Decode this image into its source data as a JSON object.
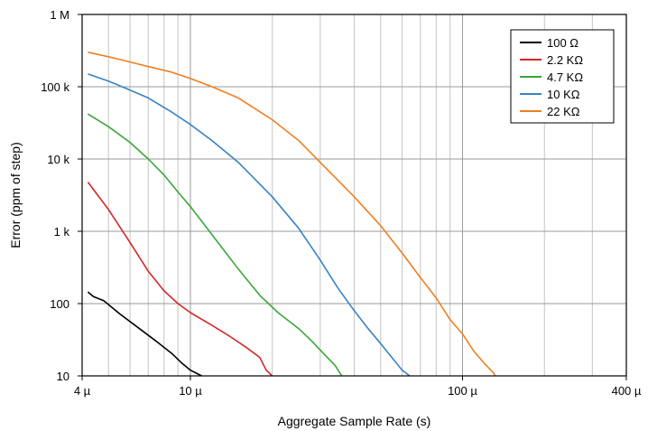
{
  "chart_data": {
    "type": "line",
    "title": "",
    "xlabel": "Aggregate Sample Rate (s)",
    "ylabel": "Error (ppm of step)",
    "xscale": "log",
    "yscale": "log",
    "xlim": [
      4e-06,
      0.0004
    ],
    "ylim": [
      10,
      1000000
    ],
    "grid": true,
    "legend_position": "top-right",
    "x_ticks": [
      {
        "value": 4e-06,
        "label": "4 µ"
      },
      {
        "value": 1e-05,
        "label": "10 µ"
      },
      {
        "value": 0.0001,
        "label": "100 µ"
      },
      {
        "value": 0.0004,
        "label": "400 µ"
      }
    ],
    "y_ticks": [
      {
        "value": 10,
        "label": "10"
      },
      {
        "value": 100,
        "label": "100"
      },
      {
        "value": 1000,
        "label": "1 k"
      },
      {
        "value": 10000,
        "label": "10 k"
      },
      {
        "value": 100000,
        "label": "100 k"
      },
      {
        "value": 1000000,
        "label": "1 M"
      }
    ],
    "series": [
      {
        "name": "100 Ω",
        "color": "#000000",
        "points": [
          [
            4.2e-06,
            145
          ],
          [
            4.4e-06,
            125
          ],
          [
            4.8e-06,
            110
          ],
          [
            5.5e-06,
            72
          ],
          [
            6.4e-06,
            47
          ],
          [
            7.5e-06,
            30
          ],
          [
            8.6e-06,
            20
          ],
          [
            9.3e-06,
            15
          ],
          [
            1e-05,
            12
          ],
          [
            1.1e-05,
            10
          ]
        ]
      },
      {
        "name": "2.2 KΩ",
        "color": "#d62728",
        "points": [
          [
            4.2e-06,
            4800
          ],
          [
            5e-06,
            2000
          ],
          [
            6e-06,
            700
          ],
          [
            7e-06,
            280
          ],
          [
            8e-06,
            150
          ],
          [
            9e-06,
            100
          ],
          [
            1e-05,
            75
          ],
          [
            1.2e-05,
            50
          ],
          [
            1.4e-05,
            35
          ],
          [
            1.6e-05,
            25
          ],
          [
            1.8e-05,
            18
          ],
          [
            1.9e-05,
            12
          ],
          [
            2e-05,
            10
          ]
        ]
      },
      {
        "name": "4.7 KΩ",
        "color": "#3aa63a",
        "points": [
          [
            4.2e-06,
            42000
          ],
          [
            5e-06,
            28000
          ],
          [
            6e-06,
            17000
          ],
          [
            7e-06,
            10000
          ],
          [
            8e-06,
            6000
          ],
          [
            9e-06,
            3500
          ],
          [
            1e-05,
            2200
          ],
          [
            1.2e-05,
            900
          ],
          [
            1.5e-05,
            300
          ],
          [
            1.8e-05,
            130
          ],
          [
            2.1e-05,
            75
          ],
          [
            2.5e-05,
            45
          ],
          [
            2.8e-05,
            30
          ],
          [
            3.1e-05,
            20
          ],
          [
            3.4e-05,
            14
          ],
          [
            3.6e-05,
            10
          ]
        ]
      },
      {
        "name": "10 KΩ",
        "color": "#3b82c4",
        "points": [
          [
            4.2e-06,
            150000
          ],
          [
            5e-06,
            120000
          ],
          [
            6e-06,
            90000
          ],
          [
            7e-06,
            70000
          ],
          [
            8.5e-06,
            45000
          ],
          [
            1e-05,
            30000
          ],
          [
            1.2e-05,
            18000
          ],
          [
            1.5e-05,
            9000
          ],
          [
            2e-05,
            3000
          ],
          [
            2.5e-05,
            1100
          ],
          [
            3e-05,
            400
          ],
          [
            3.5e-05,
            160
          ],
          [
            4e-05,
            80
          ],
          [
            4.5e-05,
            45
          ],
          [
            5e-05,
            28
          ],
          [
            5.5e-05,
            18
          ],
          [
            6e-05,
            12
          ],
          [
            6.4e-05,
            10
          ]
        ]
      },
      {
        "name": "22 KΩ",
        "color": "#f07f22",
        "points": [
          [
            4.2e-06,
            300000
          ],
          [
            5e-06,
            260000
          ],
          [
            6e-06,
            220000
          ],
          [
            7e-06,
            190000
          ],
          [
            8.5e-06,
            160000
          ],
          [
            1e-05,
            130000
          ],
          [
            1.2e-05,
            100000
          ],
          [
            1.5e-05,
            70000
          ],
          [
            2e-05,
            35000
          ],
          [
            2.5e-05,
            18000
          ],
          [
            3e-05,
            9000
          ],
          [
            3.5e-05,
            5000
          ],
          [
            4e-05,
            3000
          ],
          [
            5e-05,
            1200
          ],
          [
            6e-05,
            500
          ],
          [
            7e-05,
            230
          ],
          [
            8e-05,
            120
          ],
          [
            9e-05,
            60
          ],
          [
            0.0001,
            38
          ],
          [
            0.00011,
            22
          ],
          [
            0.00012,
            15
          ],
          [
            0.00013,
            11
          ],
          [
            0.000132,
            10
          ]
        ]
      }
    ]
  }
}
